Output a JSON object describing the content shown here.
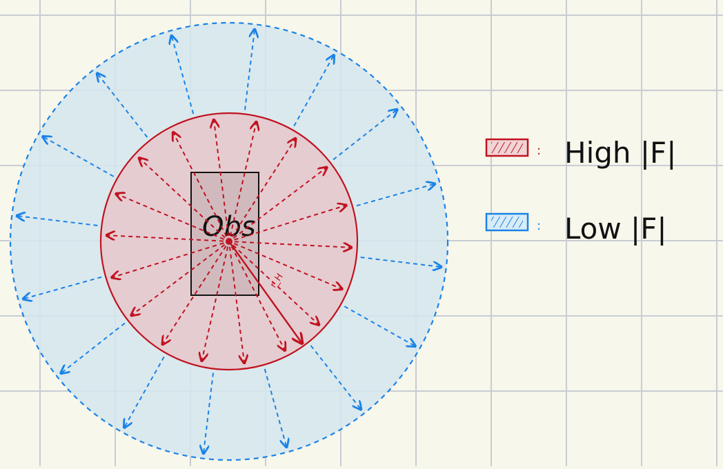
{
  "diagram": {
    "obstacle_label": "Obs",
    "radius_label": "r_H",
    "legend": [
      {
        "label": "High |F|",
        "color": "#c0121f",
        "fill": "#e9c7cc"
      },
      {
        "label": "Low |F|",
        "color": "#1a82e6",
        "fill": "#d5e6ee"
      }
    ]
  }
}
